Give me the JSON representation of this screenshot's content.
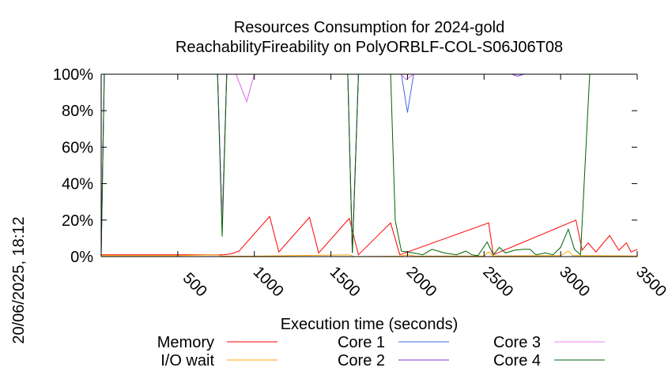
{
  "chart_data": {
    "type": "line",
    "title": "Resources Consumption for 2024-gold",
    "subtitle": "ReachabilityFireability on PolyORBLF-COL-S06J06T08",
    "xlabel": "Execution time (seconds)",
    "ylabel": "",
    "side_label": "20/06/2025, 18:12",
    "xlim": [
      0,
      3500
    ],
    "ylim": [
      0,
      100
    ],
    "x_ticks": [
      500,
      1000,
      1500,
      2000,
      2500,
      3000,
      3500
    ],
    "y_ticks": [
      {
        "value": 0,
        "label": "0%"
      },
      {
        "value": 20,
        "label": "20%"
      },
      {
        "value": 40,
        "label": "40%"
      },
      {
        "value": 60,
        "label": "60%"
      },
      {
        "value": 80,
        "label": "80%"
      },
      {
        "value": 100,
        "label": "100%"
      }
    ],
    "grid": false,
    "legend_position": "bottom",
    "series": [
      {
        "name": "Memory",
        "color": "#ff0000",
        "points": [
          [
            0,
            1
          ],
          [
            100,
            1
          ],
          [
            500,
            1
          ],
          [
            750,
            1
          ],
          [
            800,
            1
          ],
          [
            850,
            1.5
          ],
          [
            900,
            3
          ],
          [
            1100,
            22
          ],
          [
            1160,
            2.5
          ],
          [
            1360,
            21.5
          ],
          [
            1420,
            2
          ],
          [
            1620,
            21
          ],
          [
            1680,
            1
          ],
          [
            1890,
            18.5
          ],
          [
            1950,
            1
          ],
          [
            2530,
            18.5
          ],
          [
            2560,
            1
          ],
          [
            3100,
            20
          ],
          [
            3140,
            3.5
          ],
          [
            3180,
            7.5
          ],
          [
            3230,
            2.5
          ],
          [
            3320,
            11.5
          ],
          [
            3380,
            3.5
          ],
          [
            3430,
            7.5
          ],
          [
            3460,
            2.5
          ],
          [
            3500,
            4
          ]
        ]
      },
      {
        "name": "I/O wait",
        "color": "#ffa500",
        "points": [
          [
            0,
            0.5
          ],
          [
            100,
            0.5
          ],
          [
            500,
            0.5
          ],
          [
            760,
            1
          ],
          [
            790,
            0.2
          ],
          [
            1000,
            0.2
          ],
          [
            1620,
            1
          ],
          [
            1650,
            0
          ],
          [
            1950,
            0.2
          ],
          [
            2000,
            1
          ],
          [
            2050,
            0.2
          ],
          [
            2500,
            0.3
          ],
          [
            2530,
            2.5
          ],
          [
            2560,
            0.3
          ],
          [
            3000,
            0.5
          ],
          [
            3050,
            3
          ],
          [
            3080,
            0.5
          ],
          [
            3500,
            0.3
          ]
        ]
      },
      {
        "name": "Core 1",
        "color": "#4169e1",
        "points": [
          [
            0,
            2
          ],
          [
            20,
            100
          ],
          [
            760,
            100
          ],
          [
            790,
            20
          ],
          [
            820,
            100
          ],
          [
            930,
            100
          ],
          [
            1000,
            100
          ],
          [
            1610,
            100
          ],
          [
            1640,
            2
          ],
          [
            1680,
            100
          ],
          [
            1960,
            100
          ],
          [
            2000,
            79
          ],
          [
            2040,
            100
          ],
          [
            3500,
            100
          ]
        ]
      },
      {
        "name": "Core 2",
        "color": "#8a2be2",
        "points": [
          [
            0,
            2
          ],
          [
            20,
            100
          ],
          [
            760,
            100
          ],
          [
            790,
            20
          ],
          [
            820,
            100
          ],
          [
            880,
            100
          ],
          [
            950,
            85
          ],
          [
            1000,
            100
          ],
          [
            1610,
            100
          ],
          [
            1640,
            2
          ],
          [
            1680,
            100
          ],
          [
            1960,
            100
          ],
          [
            1990,
            97
          ],
          [
            2040,
            100
          ],
          [
            2680,
            100
          ],
          [
            2720,
            99
          ],
          [
            2760,
            100
          ],
          [
            3500,
            100
          ]
        ]
      },
      {
        "name": "Core 3",
        "color": "#ee82ee",
        "points": [
          [
            0,
            2
          ],
          [
            20,
            100
          ],
          [
            760,
            100
          ],
          [
            790,
            20
          ],
          [
            820,
            100
          ],
          [
            880,
            100
          ],
          [
            950,
            85
          ],
          [
            1000,
            100
          ],
          [
            1610,
            100
          ],
          [
            1640,
            2
          ],
          [
            1680,
            100
          ],
          [
            1960,
            100
          ],
          [
            1990,
            97
          ],
          [
            2040,
            100
          ],
          [
            3500,
            100
          ]
        ]
      },
      {
        "name": "Core 4",
        "color": "#006400",
        "points": [
          [
            0,
            2
          ],
          [
            20,
            100
          ],
          [
            760,
            100
          ],
          [
            790,
            11
          ],
          [
            820,
            100
          ],
          [
            1610,
            100
          ],
          [
            1640,
            2
          ],
          [
            1680,
            100
          ],
          [
            1890,
            100
          ],
          [
            1920,
            20
          ],
          [
            1960,
            3
          ],
          [
            2040,
            2
          ],
          [
            2100,
            1
          ],
          [
            2160,
            4
          ],
          [
            2240,
            2
          ],
          [
            2320,
            1
          ],
          [
            2380,
            3
          ],
          [
            2420,
            1
          ],
          [
            2460,
            0.5
          ],
          [
            2520,
            8
          ],
          [
            2560,
            1
          ],
          [
            2600,
            5
          ],
          [
            2640,
            2
          ],
          [
            2700,
            3.5
          ],
          [
            2760,
            4
          ],
          [
            2800,
            4
          ],
          [
            2840,
            1
          ],
          [
            2900,
            2
          ],
          [
            2950,
            1
          ],
          [
            3000,
            5
          ],
          [
            3050,
            15
          ],
          [
            3090,
            4
          ],
          [
            3130,
            1
          ],
          [
            3190,
            100
          ],
          [
            3500,
            100
          ]
        ]
      }
    ]
  }
}
